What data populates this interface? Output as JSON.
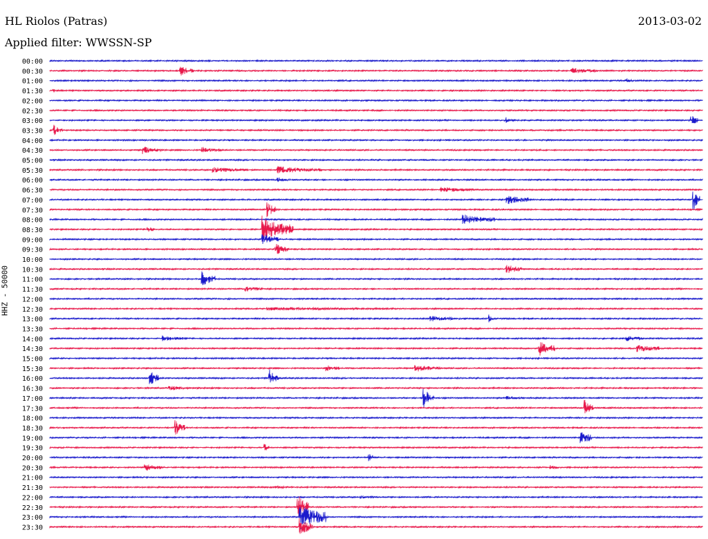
{
  "header": {
    "station": "HL Riolos (Patras)",
    "date": "2013-03-02",
    "filter": "Applied filter: WWSSN-SP"
  },
  "chart_data": {
    "type": "line",
    "title": "HL Riolos (Patras)",
    "ylabel": "HHZ - 50000",
    "colors": {
      "even": "#1a1acc",
      "odd": "#e8194b"
    },
    "grid": false,
    "rows": [
      "00:00",
      "00:30",
      "01:00",
      "01:30",
      "02:00",
      "02:30",
      "03:00",
      "03:30",
      "04:00",
      "04:30",
      "05:00",
      "05:30",
      "06:00",
      "06:30",
      "07:00",
      "07:30",
      "08:00",
      "08:30",
      "09:00",
      "09:30",
      "10:00",
      "10:30",
      "11:00",
      "11:30",
      "12:00",
      "12:30",
      "13:00",
      "13:30",
      "14:00",
      "14:30",
      "15:00",
      "15:30",
      "16:00",
      "16:30",
      "17:00",
      "17:30",
      "18:00",
      "18:30",
      "19:00",
      "19:30",
      "20:00",
      "20:30",
      "21:00",
      "21:30",
      "22:00",
      "22:30",
      "23:00",
      "23:30"
    ],
    "row_duration_min": 30,
    "events": [
      {
        "row": 1,
        "minute": 6.0,
        "amplitude": 8,
        "duration_min": 0.6
      },
      {
        "row": 1,
        "minute": 24.0,
        "amplitude": 5,
        "duration_min": 1.2
      },
      {
        "row": 2,
        "minute": 26.5,
        "amplitude": 4,
        "duration_min": 0.3
      },
      {
        "row": 3,
        "minute": 0.2,
        "amplitude": 3,
        "duration_min": 0.3
      },
      {
        "row": 6,
        "minute": 21.0,
        "amplitude": 5,
        "duration_min": 0.3
      },
      {
        "row": 6,
        "minute": 29.5,
        "amplitude": 9,
        "duration_min": 0.3
      },
      {
        "row": 7,
        "minute": 0.2,
        "amplitude": 8,
        "duration_min": 0.4
      },
      {
        "row": 9,
        "minute": 4.3,
        "amplitude": 6,
        "duration_min": 0.8
      },
      {
        "row": 9,
        "minute": 7.0,
        "amplitude": 5,
        "duration_min": 1.0
      },
      {
        "row": 11,
        "minute": 7.5,
        "amplitude": 5,
        "duration_min": 1.6
      },
      {
        "row": 11,
        "minute": 10.5,
        "amplitude": 6,
        "duration_min": 2.0
      },
      {
        "row": 12,
        "minute": 10.5,
        "amplitude": 4,
        "duration_min": 0.5
      },
      {
        "row": 13,
        "minute": 18.0,
        "amplitude": 5,
        "duration_min": 1.5
      },
      {
        "row": 14,
        "minute": 21.0,
        "amplitude": 8,
        "duration_min": 1.0
      },
      {
        "row": 14,
        "minute": 29.6,
        "amplitude": 16,
        "duration_min": 0.3
      },
      {
        "row": 15,
        "minute": 10.0,
        "amplitude": 12,
        "duration_min": 0.4
      },
      {
        "row": 16,
        "minute": 19.0,
        "amplitude": 8,
        "duration_min": 1.5
      },
      {
        "row": 17,
        "minute": 9.8,
        "amplitude": 20,
        "duration_min": 1.4
      },
      {
        "row": 17,
        "minute": 4.5,
        "amplitude": 6,
        "duration_min": 0.3
      },
      {
        "row": 18,
        "minute": 9.8,
        "amplitude": 10,
        "duration_min": 0.7
      },
      {
        "row": 19,
        "minute": 10.4,
        "amplitude": 9,
        "duration_min": 0.6
      },
      {
        "row": 21,
        "minute": 21.0,
        "amplitude": 8,
        "duration_min": 0.7
      },
      {
        "row": 22,
        "minute": 7.0,
        "amplitude": 12,
        "duration_min": 0.6
      },
      {
        "row": 23,
        "minute": 9.0,
        "amplitude": 5,
        "duration_min": 0.8
      },
      {
        "row": 25,
        "minute": 10.0,
        "amplitude": 3,
        "duration_min": 6.0
      },
      {
        "row": 26,
        "minute": 17.5,
        "amplitude": 5,
        "duration_min": 1.0
      },
      {
        "row": 26,
        "minute": 20.2,
        "amplitude": 6,
        "duration_min": 0.2
      },
      {
        "row": 28,
        "minute": 5.2,
        "amplitude": 5,
        "duration_min": 1.0
      },
      {
        "row": 28,
        "minute": 26.5,
        "amplitude": 5,
        "duration_min": 0.8
      },
      {
        "row": 29,
        "minute": 22.5,
        "amplitude": 12,
        "duration_min": 0.7
      },
      {
        "row": 29,
        "minute": 27.0,
        "amplitude": 7,
        "duration_min": 1.0
      },
      {
        "row": 31,
        "minute": 12.7,
        "amplitude": 6,
        "duration_min": 0.6
      },
      {
        "row": 31,
        "minute": 16.8,
        "amplitude": 6,
        "duration_min": 1.2
      },
      {
        "row": 32,
        "minute": 4.6,
        "amplitude": 13,
        "duration_min": 0.4
      },
      {
        "row": 32,
        "minute": 10.1,
        "amplitude": 13,
        "duration_min": 0.4
      },
      {
        "row": 33,
        "minute": 5.5,
        "amplitude": 4,
        "duration_min": 1.2
      },
      {
        "row": 34,
        "minute": 17.2,
        "amplitude": 15,
        "duration_min": 0.5
      },
      {
        "row": 34,
        "minute": 21.0,
        "amplitude": 4,
        "duration_min": 0.8
      },
      {
        "row": 35,
        "minute": 24.6,
        "amplitude": 12,
        "duration_min": 0.4
      },
      {
        "row": 37,
        "minute": 5.8,
        "amplitude": 13,
        "duration_min": 0.4
      },
      {
        "row": 38,
        "minute": 24.4,
        "amplitude": 13,
        "duration_min": 0.5
      },
      {
        "row": 39,
        "minute": 9.9,
        "amplitude": 6,
        "duration_min": 0.2
      },
      {
        "row": 40,
        "minute": 14.7,
        "amplitude": 8,
        "duration_min": 0.2
      },
      {
        "row": 41,
        "minute": 4.4,
        "amplitude": 6,
        "duration_min": 0.8
      },
      {
        "row": 41,
        "minute": 23.0,
        "amplitude": 4,
        "duration_min": 0.4
      },
      {
        "row": 43,
        "minute": 10.4,
        "amplitude": 3,
        "duration_min": 0.8
      },
      {
        "row": 44,
        "minute": 14.3,
        "amplitude": 3,
        "duration_min": 0.6
      },
      {
        "row": 45,
        "minute": 11.4,
        "amplitude": 20,
        "duration_min": 0.5
      },
      {
        "row": 46,
        "minute": 11.5,
        "amplitude": 20,
        "duration_min": 1.2
      },
      {
        "row": 47,
        "minute": 11.5,
        "amplitude": 14,
        "duration_min": 0.6
      }
    ]
  }
}
